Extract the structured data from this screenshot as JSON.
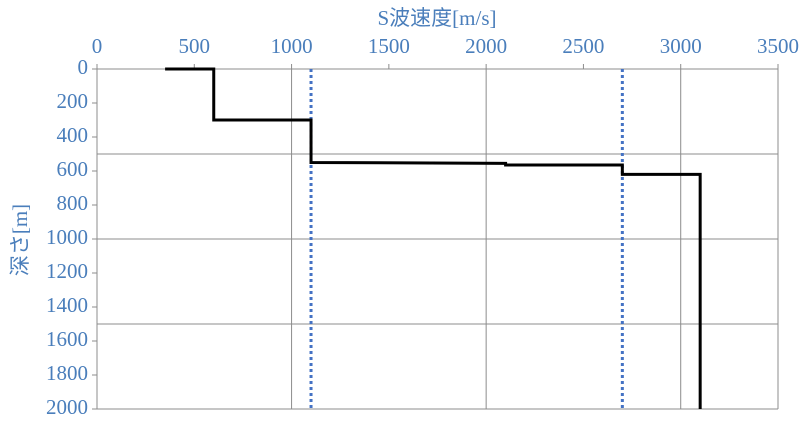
{
  "chart_data": {
    "type": "line",
    "title": "S波速度[m/s]",
    "y_label": "深さ[m]",
    "x": [
      350,
      600,
      600,
      1100,
      1100,
      2100,
      2100,
      2700,
      2700,
      3100,
      3100
    ],
    "values": [
      0,
      0,
      300,
      300,
      550,
      555,
      565,
      565,
      620,
      620,
      2000
    ],
    "color": "#000000",
    "xlim": [
      0,
      3500
    ],
    "xticks": [
      0,
      500,
      1000,
      1500,
      2000,
      2500,
      3000,
      3500
    ],
    "ylim": [
      0,
      2000
    ],
    "yticks": [
      0,
      200,
      400,
      600,
      800,
      1000,
      1200,
      1400,
      1600,
      1800,
      2000
    ],
    "y_reversed": true,
    "x_axis_position": "top",
    "x_gridlines": [
      1000,
      2000,
      3000,
      3500
    ],
    "y_gridlines": [
      500,
      1000,
      1500,
      2000
    ],
    "reference_lines_x": [
      1100,
      2700
    ],
    "reference_color": "#4472c4"
  }
}
